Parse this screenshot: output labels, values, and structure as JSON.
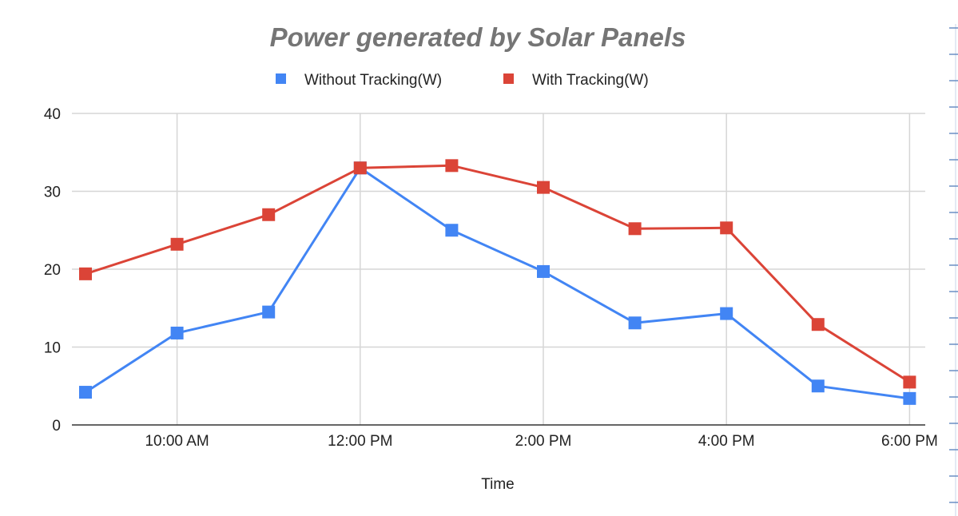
{
  "chart_data": {
    "type": "line",
    "title": "Power generated by Solar Panels",
    "xlabel": "Time",
    "ylabel": "",
    "x": [
      "9:00 AM",
      "10:00 AM",
      "11:00 AM",
      "12:00 PM",
      "1:00 PM",
      "2:00 PM",
      "3:00 PM",
      "4:00 PM",
      "5:00 PM",
      "6:00 PM"
    ],
    "x_tick_labels": [
      "10:00 AM",
      "12:00 PM",
      "2:00 PM",
      "4:00 PM",
      "6:00 PM"
    ],
    "y_ticks": [
      0,
      10,
      20,
      30,
      40
    ],
    "ylim": [
      0,
      40
    ],
    "grid": true,
    "legend_position": "top",
    "series": [
      {
        "name": "Without Tracking(W)",
        "color": "#4285f4",
        "values": [
          4.2,
          11.8,
          14.5,
          33.0,
          25.0,
          19.7,
          13.1,
          14.3,
          5.0,
          3.4
        ]
      },
      {
        "name": "With Tracking(W)",
        "color": "#db4437",
        "values": [
          19.4,
          23.2,
          27.0,
          33.0,
          33.3,
          30.5,
          25.2,
          25.3,
          12.9,
          5.5
        ]
      }
    ]
  }
}
